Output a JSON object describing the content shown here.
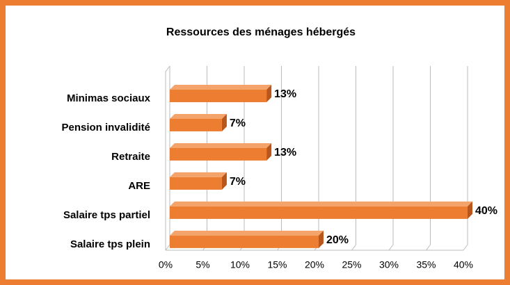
{
  "chart_data": {
    "type": "bar",
    "orientation": "horizontal",
    "title": "Ressources des ménages hébergés",
    "categories": [
      "Minimas sociaux",
      "Pension invalidité",
      "Retraite",
      "ARE",
      "Salaire tps partiel",
      "Salaire tps plein"
    ],
    "values": [
      13,
      7,
      13,
      7,
      40,
      20
    ],
    "value_labels": [
      "13%",
      "7%",
      "13%",
      "7%",
      "40%",
      "20%"
    ],
    "color": "#ed7d31",
    "xlim": [
      0,
      40
    ],
    "xticks": [
      {
        "value": 0,
        "label": "0%"
      },
      {
        "value": 5,
        "label": "5%"
      },
      {
        "value": 10,
        "label": "10%"
      },
      {
        "value": 15,
        "label": "15%"
      },
      {
        "value": 20,
        "label": "20%"
      },
      {
        "value": 25,
        "label": "25%"
      },
      {
        "value": 30,
        "label": "30%"
      },
      {
        "value": 35,
        "label": "35%"
      },
      {
        "value": 40,
        "label": "40%"
      }
    ],
    "grid": true
  }
}
